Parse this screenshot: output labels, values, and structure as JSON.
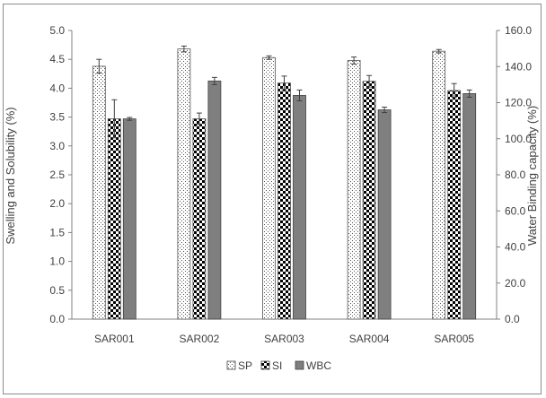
{
  "chart_data": {
    "type": "bar",
    "categories": [
      "SAR001",
      "SAR002",
      "SAR003",
      "SAR004",
      "SAR005"
    ],
    "ylabel": "Swelling and Solubility (%)",
    "ylabel_right": "Water Binding capacity (%)",
    "ylim": [
      0,
      5
    ],
    "ylim_right": [
      0,
      160
    ],
    "yticks": [
      "0.0",
      "0.5",
      "1.0",
      "1.5",
      "2.0",
      "2.5",
      "3.0",
      "3.5",
      "4.0",
      "4.5",
      "5.0"
    ],
    "yticks_right": [
      "0.0",
      "20.0",
      "40.0",
      "60.0",
      "80.0",
      "100.0",
      "120.0",
      "140.0",
      "160.0"
    ],
    "legend_position": "bottom",
    "grid": false,
    "series": [
      {
        "name": "SP",
        "axis": "left",
        "pattern": "dots",
        "color": "#ffffff",
        "values": [
          4.38,
          4.68,
          4.53,
          4.48,
          4.64
        ],
        "errors": [
          0.12,
          0.05,
          0.03,
          0.06,
          0.03
        ]
      },
      {
        "name": "SI",
        "axis": "left",
        "pattern": "checker",
        "color": "#000000",
        "values": [
          3.47,
          3.47,
          4.09,
          4.12,
          3.96
        ],
        "errors": [
          0.33,
          0.1,
          0.12,
          0.1,
          0.12
        ]
      },
      {
        "name": "WBC",
        "axis": "right",
        "pattern": "solid",
        "color": "#7f7f7f",
        "values": [
          111.0,
          132.0,
          124.0,
          116.0,
          125.0
        ],
        "errors": [
          0.8,
          2.0,
          3.0,
          1.5,
          2.0
        ]
      }
    ]
  }
}
